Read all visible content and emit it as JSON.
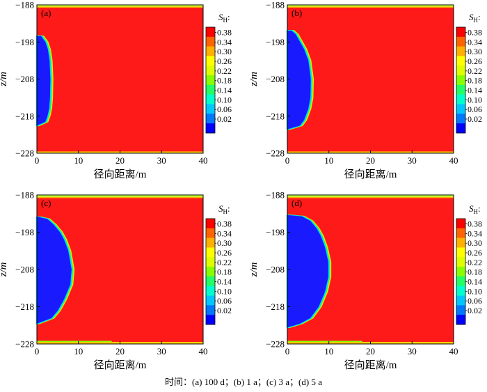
{
  "caption": "时间：(a) 100 d；(b) 1 a；(c) 3 a；(d) 5 a",
  "colors": {
    "high": "#ff1a1a",
    "low": "#1a1aff",
    "ramp": [
      "#0000ff",
      "#0077ff",
      "#00c8ff",
      "#00ffd0",
      "#22ff66",
      "#88ff00",
      "#ddff00",
      "#ffff00",
      "#ffb000",
      "#ff6400",
      "#ff0000"
    ]
  },
  "chart_data": [
    {
      "type": "heatmap",
      "panel_label": "(a)",
      "xlabel": "径向距离/m",
      "ylabel": "z/m",
      "xlim": [
        0,
        40
      ],
      "ylim": [
        -228,
        -188
      ],
      "x_ticks": [
        "0",
        "10",
        "20",
        "30",
        "40"
      ],
      "y_ticks": [
        "−188",
        "−198",
        "−208",
        "−218",
        "−228"
      ],
      "colorbar_title": "S_H:",
      "colorbar_levels": [
        "0.38",
        "0.34",
        "0.30",
        "0.26",
        "0.22",
        "0.18",
        "0.14",
        "0.10",
        "0.06",
        "0.02"
      ],
      "dissociated_front_radius_m": [
        [
          -196.5,
          1.0
        ],
        [
          -198,
          2.0
        ],
        [
          -200,
          2.6
        ],
        [
          -203,
          3.0
        ],
        [
          -208,
          3.2
        ],
        [
          -213,
          3.1
        ],
        [
          -216,
          2.9
        ],
        [
          -218,
          2.5
        ],
        [
          -219.5,
          2.0
        ],
        [
          -220.5,
          0.0
        ]
      ]
    },
    {
      "type": "heatmap",
      "panel_label": "(b)",
      "xlabel": "径向距离/m",
      "ylabel": "z/m",
      "xlim": [
        0,
        40
      ],
      "ylim": [
        -228,
        -188
      ],
      "x_ticks": [
        "0",
        "10",
        "20",
        "30",
        "40"
      ],
      "y_ticks": [
        "−188",
        "−198",
        "−208",
        "−218",
        "−228"
      ],
      "colorbar_title": "S_H:",
      "colorbar_levels": [
        "0.38",
        "0.34",
        "0.30",
        "0.26",
        "0.22",
        "0.18",
        "0.14",
        "0.10",
        "0.06",
        "0.02"
      ],
      "dissociated_front_radius_m": [
        [
          -195,
          1.0
        ],
        [
          -196,
          2.0
        ],
        [
          -198,
          3.0
        ],
        [
          -200,
          4.0
        ],
        [
          -203,
          5.0
        ],
        [
          -208,
          5.6
        ],
        [
          -213,
          5.5
        ],
        [
          -216,
          5.0
        ],
        [
          -219,
          4.0
        ],
        [
          -220.5,
          3.0
        ],
        [
          -221.5,
          0.0
        ]
      ]
    },
    {
      "type": "heatmap",
      "panel_label": "(c)",
      "xlabel": "径向距离/m",
      "ylabel": "z/m",
      "xlim": [
        0,
        40
      ],
      "ylim": [
        -228,
        -188
      ],
      "x_ticks": [
        "0",
        "10",
        "20",
        "30",
        "40"
      ],
      "y_ticks": [
        "−188",
        "−198",
        "−208",
        "−218",
        "−228"
      ],
      "colorbar_title": "S_H:",
      "colorbar_levels": [
        "0.38",
        "0.34",
        "0.30",
        "0.26",
        "0.22",
        "0.18",
        "0.14",
        "0.10",
        "0.06",
        "0.02"
      ],
      "dissociated_front_radius_m": [
        [
          -194,
          0.5
        ],
        [
          -194.5,
          2.5
        ],
        [
          -196,
          4.0
        ],
        [
          -198,
          5.5
        ],
        [
          -200,
          6.5
        ],
        [
          -203,
          7.5
        ],
        [
          -208,
          8.3
        ],
        [
          -212,
          8.0
        ],
        [
          -216,
          6.5
        ],
        [
          -219,
          5.0
        ],
        [
          -221,
          3.5
        ],
        [
          -222.5,
          0.0
        ]
      ]
    },
    {
      "type": "heatmap",
      "panel_label": "(d)",
      "xlabel": "径向距离/m",
      "ylabel": "z/m",
      "xlim": [
        0,
        40
      ],
      "ylim": [
        -228,
        -188
      ],
      "x_ticks": [
        "0",
        "10",
        "20",
        "30",
        "40"
      ],
      "y_ticks": [
        "−188",
        "−198",
        "−208",
        "−218",
        "−228"
      ],
      "colorbar_title": "S_H:",
      "colorbar_levels": [
        "0.38",
        "0.34",
        "0.30",
        "0.26",
        "0.22",
        "0.18",
        "0.14",
        "0.10",
        "0.06",
        "0.02"
      ],
      "dissociated_front_radius_m": [
        [
          -193.5,
          0.5
        ],
        [
          -193.8,
          3.5
        ],
        [
          -195,
          5.5
        ],
        [
          -197,
          7.0
        ],
        [
          -199,
          8.0
        ],
        [
          -202,
          9.0
        ],
        [
          -206,
          9.8
        ],
        [
          -210,
          9.8
        ],
        [
          -214,
          9.0
        ],
        [
          -218,
          7.5
        ],
        [
          -221,
          5.5
        ],
        [
          -222.5,
          3.0
        ],
        [
          -223.5,
          0.0
        ]
      ]
    }
  ]
}
